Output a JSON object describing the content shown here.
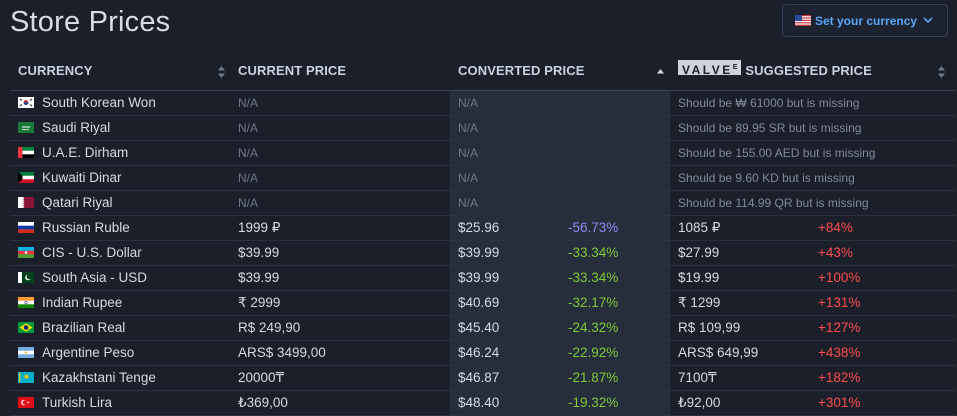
{
  "title": "Store Prices",
  "currency_button": {
    "label": "Set your currency",
    "flag": "us-flag-icon"
  },
  "header": {
    "currency": "CURRENCY",
    "current_price": "CURRENT PRICE",
    "converted_price": "CONVERTED PRICE",
    "valve_logo": "VALVE",
    "valve_logo_mark": "E",
    "suggested_price": "SUGGESTED PRICE"
  },
  "colors": {
    "accent": "#5aa6f5",
    "green": "#7fc93a",
    "red": "#ff4c4c",
    "purple": "#8f8ff5"
  },
  "rows": [
    {
      "name": "South Korean Won",
      "flag": "kr",
      "current": "N/A",
      "converted": "N/A",
      "missing": "Should be ₩ 61000 but is missing"
    },
    {
      "name": "Saudi Riyal",
      "flag": "sa",
      "current": "N/A",
      "converted": "N/A",
      "missing": "Should be 89.95 SR but is missing"
    },
    {
      "name": "U.A.E. Dirham",
      "flag": "ae",
      "current": "N/A",
      "converted": "N/A",
      "missing": "Should be 155.00 AED but is missing"
    },
    {
      "name": "Kuwaiti Dinar",
      "flag": "kw",
      "current": "N/A",
      "converted": "N/A",
      "missing": "Should be 9.60 KD but is missing"
    },
    {
      "name": "Qatari Riyal",
      "flag": "qa",
      "current": "N/A",
      "converted": "N/A",
      "missing": "Should be 114.99 QR but is missing"
    },
    {
      "name": "Russian Ruble",
      "flag": "ru",
      "current": "1999 ₽",
      "converted": "$25.96",
      "pct": "-56.73%",
      "pct_style": "blue",
      "suggested": "1085 ₽",
      "diff": "+84%"
    },
    {
      "name": "CIS - U.S. Dollar",
      "flag": "az",
      "current": "$39.99",
      "converted": "$39.99",
      "pct": "-33.34%",
      "suggested": "$27.99",
      "diff": "+43%"
    },
    {
      "name": "South Asia - USD",
      "flag": "pk",
      "current": "$39.99",
      "converted": "$39.99",
      "pct": "-33.34%",
      "suggested": "$19.99",
      "diff": "+100%"
    },
    {
      "name": "Indian Rupee",
      "flag": "in",
      "current": "₹ 2999",
      "converted": "$40.69",
      "pct": "-32.17%",
      "suggested": "₹ 1299",
      "diff": "+131%"
    },
    {
      "name": "Brazilian Real",
      "flag": "br",
      "current": "R$ 249,90",
      "converted": "$45.40",
      "pct": "-24.32%",
      "suggested": "R$ 109,99",
      "diff": "+127%"
    },
    {
      "name": "Argentine Peso",
      "flag": "ar",
      "current": "ARS$ 3499,00",
      "converted": "$46.24",
      "pct": "-22.92%",
      "suggested": "ARS$ 649,99",
      "diff": "+438%"
    },
    {
      "name": "Kazakhstani Tenge",
      "flag": "kz",
      "current": "20000₸",
      "converted": "$46.87",
      "pct": "-21.87%",
      "suggested": "7100₸",
      "diff": "+182%"
    },
    {
      "name": "Turkish Lira",
      "flag": "tr",
      "current": "₺369,00",
      "converted": "$48.40",
      "pct": "-19.32%",
      "suggested": "₺92,00",
      "diff": "+301%"
    }
  ]
}
